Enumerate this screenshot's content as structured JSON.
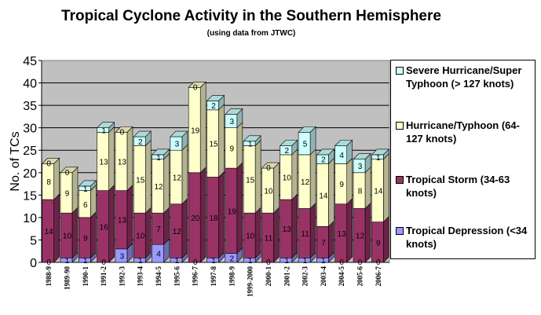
{
  "chart_data": {
    "type": "bar",
    "stacked": true,
    "title": "Tropical Cyclone Activity in the Southern Hemisphere",
    "subtitle": "(using data from JTWC)",
    "ylabel": "No. of TCs",
    "xlabel": "",
    "ylim": [
      0,
      45
    ],
    "yticks": [
      0,
      5,
      10,
      15,
      20,
      25,
      30,
      35,
      40,
      45
    ],
    "grid": true,
    "legend_position": "right",
    "categories": [
      "1988-9",
      "1989-90",
      "1990-1",
      "1991-2",
      "1992-3",
      "1993-4",
      "1994-5",
      "1995-6",
      "1996-7",
      "1997-8",
      "1998-9",
      "1999-2000",
      "2000-1",
      "2001-2",
      "2002-3",
      "2003-4",
      "2004-5",
      "2005-6",
      "2006-7"
    ],
    "series": [
      {
        "name": "Tropical Depression (<34 knots)",
        "color": "#9999ff",
        "values": [
          0,
          1,
          1,
          0,
          3,
          1,
          4,
          1,
          0,
          1,
          2,
          1,
          0,
          1,
          1,
          1,
          0,
          0,
          0
        ]
      },
      {
        "name": "Tropical Storm (34-63 knots)",
        "color": "#993366",
        "values": [
          14,
          10,
          9,
          16,
          13,
          10,
          7,
          12,
          20,
          18,
          19,
          10,
          11,
          13,
          11,
          7,
          13,
          12,
          9
        ]
      },
      {
        "name": "Hurricane/Typhoon (64-127 knots)",
        "color": "#ffffcc",
        "values": [
          8,
          9,
          6,
          13,
          13,
          15,
          12,
          12,
          19,
          15,
          9,
          15,
          10,
          10,
          12,
          14,
          9,
          8,
          14
        ]
      },
      {
        "name": "Severe Hurricane/Super Typhoon (> 127 knots)",
        "color": "#ccffff",
        "values": [
          0,
          0,
          1,
          1,
          0,
          2,
          1,
          3,
          0,
          2,
          3,
          1,
          0,
          2,
          5,
          2,
          4,
          3,
          1
        ]
      }
    ],
    "legend_order": [
      "Severe Hurricane/Super Typhoon (> 127 knots)",
      "Hurricane/Typhoon (64-127 knots)",
      "Tropical Storm (34-63 knots)",
      "Tropical Depression (<34 knots)"
    ],
    "colors": {
      "plot_background": "#c0c0c0",
      "gridline": "#000000"
    }
  }
}
